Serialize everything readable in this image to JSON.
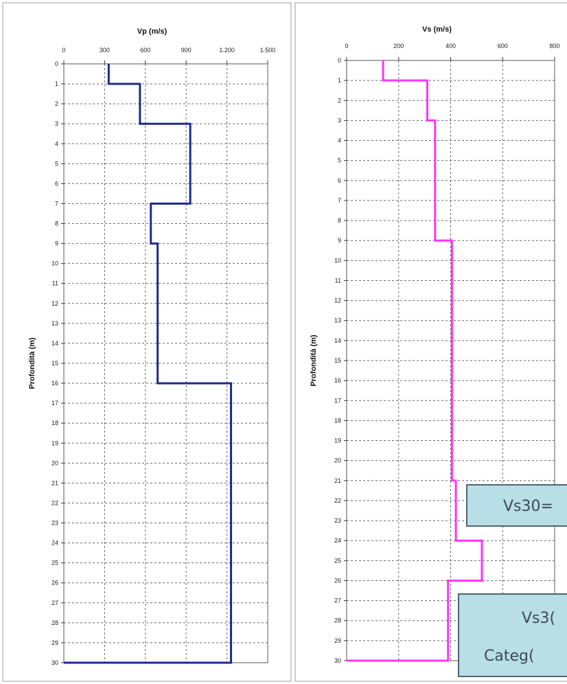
{
  "chart_data": [
    {
      "type": "line",
      "title": "Vp (m/s)",
      "xlabel": "Vp (m/s)",
      "ylabel": "Profondità (m)",
      "xticks": [
        0,
        300,
        600,
        900,
        1200,
        1500
      ],
      "xtick_labels": [
        "0",
        "300",
        "600",
        "900",
        "1.200",
        "1.500"
      ],
      "xlim": [
        0,
        1500
      ],
      "ylim": [
        0,
        30
      ],
      "y_inverted": true,
      "grid": true,
      "color": "#1f2a8c",
      "series": [
        {
          "profile": [
            {
              "v": 330,
              "top": 0,
              "bottom": 1
            },
            {
              "v": 560,
              "top": 1,
              "bottom": 3
            },
            {
              "v": 930,
              "top": 3,
              "bottom": 7
            },
            {
              "v": 640,
              "top": 7,
              "bottom": 9
            },
            {
              "v": 690,
              "top": 9,
              "bottom": 16
            },
            {
              "v": 1230,
              "top": 16,
              "bottom": 30
            },
            {
              "v": 0,
              "top": 30,
              "bottom": 30
            }
          ]
        }
      ]
    },
    {
      "type": "line",
      "title": "Vs (m/s)",
      "xlabel": "Vs (m/s)",
      "ylabel": "Profondità (m)",
      "xticks": [
        0,
        200,
        400,
        600,
        800
      ],
      "xtick_labels": [
        "0",
        "200",
        "400",
        "600",
        "800"
      ],
      "xlim": [
        0,
        800
      ],
      "ylim": [
        0,
        30
      ],
      "y_inverted": true,
      "grid": true,
      "color": "#ff33ff",
      "series": [
        {
          "profile": [
            {
              "v": 140,
              "top": 0,
              "bottom": 1
            },
            {
              "v": 310,
              "top": 1,
              "bottom": 3
            },
            {
              "v": 340,
              "top": 3,
              "bottom": 9
            },
            {
              "v": 405,
              "top": 9,
              "bottom": 21
            },
            {
              "v": 420,
              "top": 21,
              "bottom": 24
            },
            {
              "v": 520,
              "top": 24,
              "bottom": 26
            },
            {
              "v": 390,
              "top": 26,
              "bottom": 30
            },
            {
              "v": 0,
              "top": 30,
              "bottom": 30
            }
          ]
        }
      ],
      "annotations": [
        "Vs30=",
        "Vs3(",
        "Categ("
      ]
    }
  ]
}
